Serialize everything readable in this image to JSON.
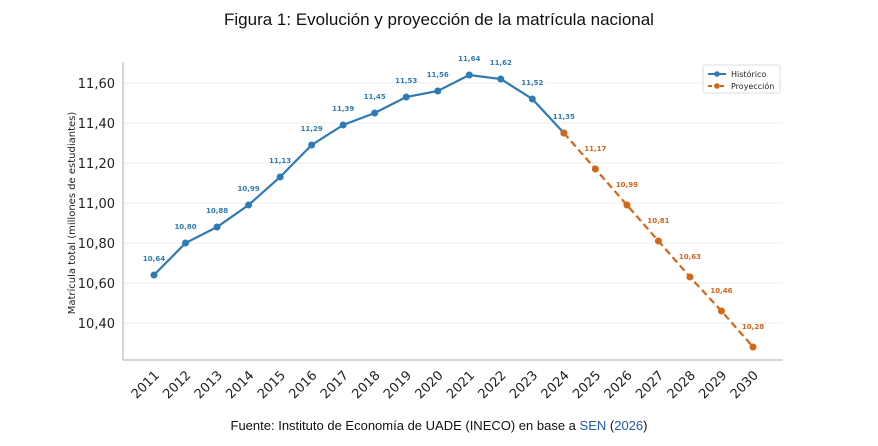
{
  "figure_title": "Figura 1: Evolución y proyección de la matrícula nacional",
  "source": {
    "prefix": "Fuente: Instituto de Economía de UADE (INECO) en base a ",
    "link1": "SEN",
    "open": " (",
    "link2": "2026",
    "close": ")"
  },
  "chart_data": {
    "type": "line",
    "title": "",
    "xlabel": "",
    "ylabel": "Matrícula total (millones de estudiantes)",
    "ylim": [
      10.215,
      11.705
    ],
    "yticks": [
      10.4,
      10.6,
      10.8,
      11.0,
      11.2,
      11.4,
      11.6
    ],
    "ytick_labels": [
      "10,40",
      "10,60",
      "10,80",
      "11,00",
      "11,20",
      "11,40",
      "11,60"
    ],
    "grid": "horizontal",
    "legend_placement": "top-right",
    "series": [
      {
        "name": "Histórico",
        "color": "#2e7bb4",
        "style": "solid",
        "x": [
          2011,
          2012,
          2013,
          2014,
          2015,
          2016,
          2017,
          2018,
          2019,
          2020,
          2021,
          2022,
          2023,
          2024
        ],
        "values": [
          10.64,
          10.8,
          10.88,
          10.99,
          11.13,
          11.29,
          11.39,
          11.45,
          11.53,
          11.56,
          11.64,
          11.62,
          11.52,
          11.35
        ],
        "labels": [
          "10,64",
          "10,80",
          "10,88",
          "10,99",
          "11,13",
          "11,29",
          "11,39",
          "11,45",
          "11,53",
          "11,56",
          "11,64",
          "11,62",
          "11,52",
          "11,35"
        ]
      },
      {
        "name": "Proyección",
        "color": "#d4661a",
        "style": "dashed",
        "x": [
          2024,
          2025,
          2026,
          2027,
          2028,
          2029,
          2030
        ],
        "values": [
          11.35,
          11.17,
          10.99,
          10.81,
          10.63,
          10.46,
          10.28
        ],
        "labels": [
          "",
          "11,17",
          "10,99",
          "10,81",
          "10,63",
          "10,46",
          "10,28"
        ]
      }
    ],
    "categories": [
      "2011",
      "2012",
      "2013",
      "2014",
      "2015",
      "2016",
      "2017",
      "2018",
      "2019",
      "2020",
      "2021",
      "2022",
      "2023",
      "2024",
      "2025",
      "2026",
      "2027",
      "2028",
      "2029",
      "2030"
    ]
  }
}
